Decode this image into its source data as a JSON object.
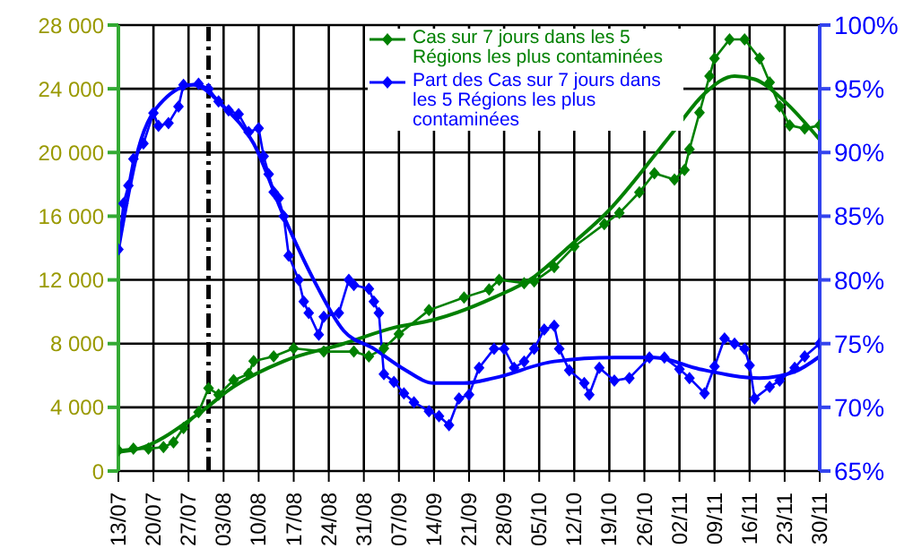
{
  "chart_data": {
    "type": "line",
    "legend": "top right",
    "grid": true,
    "marker": "diamond",
    "xlim": [
      "--07-13",
      "--11-30"
    ],
    "xticks": [
      {
        "value": "--07-13",
        "label": "13/07"
      },
      {
        "value": "--07-20",
        "label": "20/07"
      },
      {
        "value": "--07-27",
        "label": "27/07"
      },
      {
        "value": "--08-03",
        "label": "03/08"
      },
      {
        "value": "--08-10",
        "label": "10/08"
      },
      {
        "value": "--08-17",
        "label": "17/08"
      },
      {
        "value": "--08-24",
        "label": "24/08"
      },
      {
        "value": "--08-31",
        "label": "31/08"
      },
      {
        "value": "--09-07",
        "label": "07/09"
      },
      {
        "value": "--09-14",
        "label": "14/09"
      },
      {
        "value": "--09-21",
        "label": "21/09"
      },
      {
        "value": "--09-28",
        "label": "28/09"
      },
      {
        "value": "--10-05",
        "label": "05/10"
      },
      {
        "value": "--10-12",
        "label": "12/10"
      },
      {
        "value": "--10-19",
        "label": "19/10"
      },
      {
        "value": "--10-26",
        "label": "26/10"
      },
      {
        "value": "--11-02",
        "label": "02/11"
      },
      {
        "value": "--11-09",
        "label": "09/11"
      },
      {
        "value": "--11-16",
        "label": "16/11"
      },
      {
        "value": "--11-23",
        "label": "23/11"
      },
      {
        "value": "--11-30",
        "label": "30/11"
      }
    ],
    "ylim": [
      0,
      28000
    ],
    "yticks": [
      0,
      {
        "value": 4000,
        "label": "4 000"
      },
      {
        "value": 8000,
        "label": "8 000"
      },
      {
        "value": 12000,
        "label": "12 000"
      },
      {
        "value": 16000,
        "label": "16 000"
      },
      {
        "value": 20000,
        "label": "20 000"
      },
      {
        "value": 24000,
        "label": "24 000"
      },
      {
        "value": 28000,
        "label": "28 000"
      }
    ],
    "y2lim": [
      65,
      100
    ],
    "y2ticks": [
      {
        "value": 65,
        "label": "65%"
      },
      {
        "value": 70,
        "label": "70%"
      },
      {
        "value": 75,
        "label": "75%"
      },
      {
        "value": 80,
        "label": "80%"
      },
      {
        "value": 85,
        "label": "85%"
      },
      {
        "value": 90,
        "label": "90%"
      },
      {
        "value": 95,
        "label": "95%"
      },
      {
        "value": 100,
        "label": "100%"
      }
    ],
    "ref_lines": [
      {
        "axis": "x",
        "value": "--07-31",
        "color": "#000000",
        "line_style": "dashed"
      }
    ],
    "series": [
      {
        "name": "Cas sur 7 jours dans les 5 Régions les plus contaminées",
        "color": "#008000",
        "x": [
          "--07-13",
          "--07-16",
          "--07-19",
          "--07-22",
          "--07-24",
          "--07-26",
          "--07-29",
          "--07-31",
          "--08-02",
          "--08-05",
          "--08-08",
          "--08-09",
          "--08-13",
          "--08-17",
          "--08-23",
          "--08-29",
          "--09-01",
          "--09-04",
          "--09-07",
          "--09-13",
          "--09-20",
          "--09-25",
          "--09-27",
          "--10-02",
          "--10-04",
          "--10-08",
          "--10-12",
          "--10-18",
          "--10-21",
          "--10-25",
          "--10-28",
          "--11-01",
          "--11-03",
          "--11-04",
          "--11-06",
          "--11-08",
          "--11-09",
          "--11-12",
          "--11-15",
          "--11-18",
          "--11-20",
          "--11-22",
          "--11-24",
          "--11-27",
          "--11-30"
        ],
        "values": [
          1300,
          1400,
          1400,
          1500,
          1800,
          2700,
          3700,
          5200,
          4800,
          5700,
          6100,
          6900,
          7200,
          7700,
          7500,
          7500,
          7200,
          7700,
          8600,
          10100,
          10900,
          11400,
          12000,
          11800,
          11900,
          12800,
          14100,
          15500,
          16200,
          17500,
          18700,
          18300,
          18900,
          20200,
          22500,
          24800,
          25900,
          27100,
          27100,
          25900,
          24400,
          22900,
          21700,
          21500,
          21700
        ]
      },
      {
        "color": "#008000",
        "marker": "none",
        "x": [
          "--07-13",
          "--07-17",
          "--07-29",
          "--08-05",
          "--08-15",
          "--08-27",
          "--09-06",
          "--09-14",
          "--09-26",
          "--10-04",
          "--10-11",
          "--10-19",
          "--10-28",
          "--11-01",
          "--11-07",
          "--11-13",
          "--11-17",
          "--11-23",
          "--11-30"
        ],
        "values": [
          1200,
          1400,
          3600,
          5300,
          6900,
          8000,
          9000,
          9500,
          10900,
          12200,
          14100,
          16400,
          19800,
          21400,
          23700,
          24800,
          24600,
          23200,
          20800
        ]
      },
      {
        "name": "Part des Cas sur 7 jours dans les 5 Régions les plus contaminées",
        "color": "#0000ff",
        "axis": "y2",
        "x": [
          "--07-13",
          "--07-14",
          "--07-15",
          "--07-16",
          "--07-18",
          "--07-20",
          "--07-21",
          "--07-23",
          "--07-25",
          "--07-26",
          "--07-29",
          "--07-31",
          "--08-02",
          "--08-04",
          "--08-06",
          "--08-08",
          "--08-10",
          "--08-11",
          "--08-12",
          "--08-13",
          "--08-14",
          "--08-15",
          "--08-16",
          "--08-18",
          "--08-19",
          "--08-20",
          "--08-22",
          "--08-23",
          "--08-26",
          "--08-28",
          "--08-29",
          "--09-01",
          "--09-02",
          "--09-03",
          "--09-04",
          "--09-06",
          "--09-08",
          "--09-10",
          "--09-13",
          "--09-15",
          "--09-17",
          "--09-19",
          "--09-21",
          "--09-23",
          "--09-26",
          "--09-28",
          "--09-30",
          "--10-02",
          "--10-04",
          "--10-06",
          "--10-08",
          "--10-09",
          "--10-11",
          "--10-14",
          "--10-15",
          "--10-17",
          "--10-20",
          "--10-23",
          "--10-27",
          "--10-30",
          "--11-02",
          "--11-04",
          "--11-07",
          "--11-09",
          "--11-11",
          "--11-13",
          "--11-15",
          "--11-16",
          "--11-17",
          "--11-20",
          "--11-22",
          "--11-25",
          "--11-27",
          "--11-30"
        ],
        "values": [
          82.4,
          86,
          87.4,
          89.5,
          90.7,
          93.1,
          92.1,
          92.3,
          93.6,
          95.3,
          95.4,
          95,
          94,
          93.3,
          93,
          91.6,
          91.9,
          89.7,
          88.3,
          86.9,
          86.4,
          85,
          81.9,
          80,
          78.3,
          77.4,
          75.7,
          77.1,
          77.4,
          80,
          79.6,
          79.3,
          78.3,
          77.4,
          72.6,
          72,
          71.1,
          70.4,
          69.7,
          69.3,
          68.6,
          70.7,
          71,
          73.1,
          74.6,
          74.6,
          73.1,
          73.6,
          74.6,
          76.1,
          76.4,
          74.6,
          72.9,
          71.9,
          71,
          73.1,
          72.1,
          72.3,
          73.9,
          73.9,
          73,
          72.3,
          71.1,
          73.2,
          75.4,
          75,
          74.6,
          73.3,
          70.7,
          71.6,
          72.1,
          73.1,
          74,
          75
        ]
      },
      {
        "color": "#0000ff",
        "marker": "none",
        "axis": "y2",
        "x": [
          "--07-13",
          "--07-17",
          "--07-22",
          "--07-28",
          "--08-03",
          "--08-09",
          "--08-15",
          "--08-21",
          "--08-27",
          "--09-02",
          "--09-08",
          "--09-14",
          "--09-20",
          "--09-26",
          "--10-08",
          "--10-20",
          "--10-28",
          "--11-06",
          "--11-18",
          "--11-25",
          "--11-30"
        ],
        "values": [
          82.4,
          90.3,
          94.1,
          95.3,
          93.6,
          90.7,
          85,
          80,
          76,
          74.6,
          73,
          71.9,
          71.9,
          72.3,
          73.6,
          73.9,
          73.9,
          73,
          72.3,
          72.8,
          74
        ]
      }
    ]
  }
}
